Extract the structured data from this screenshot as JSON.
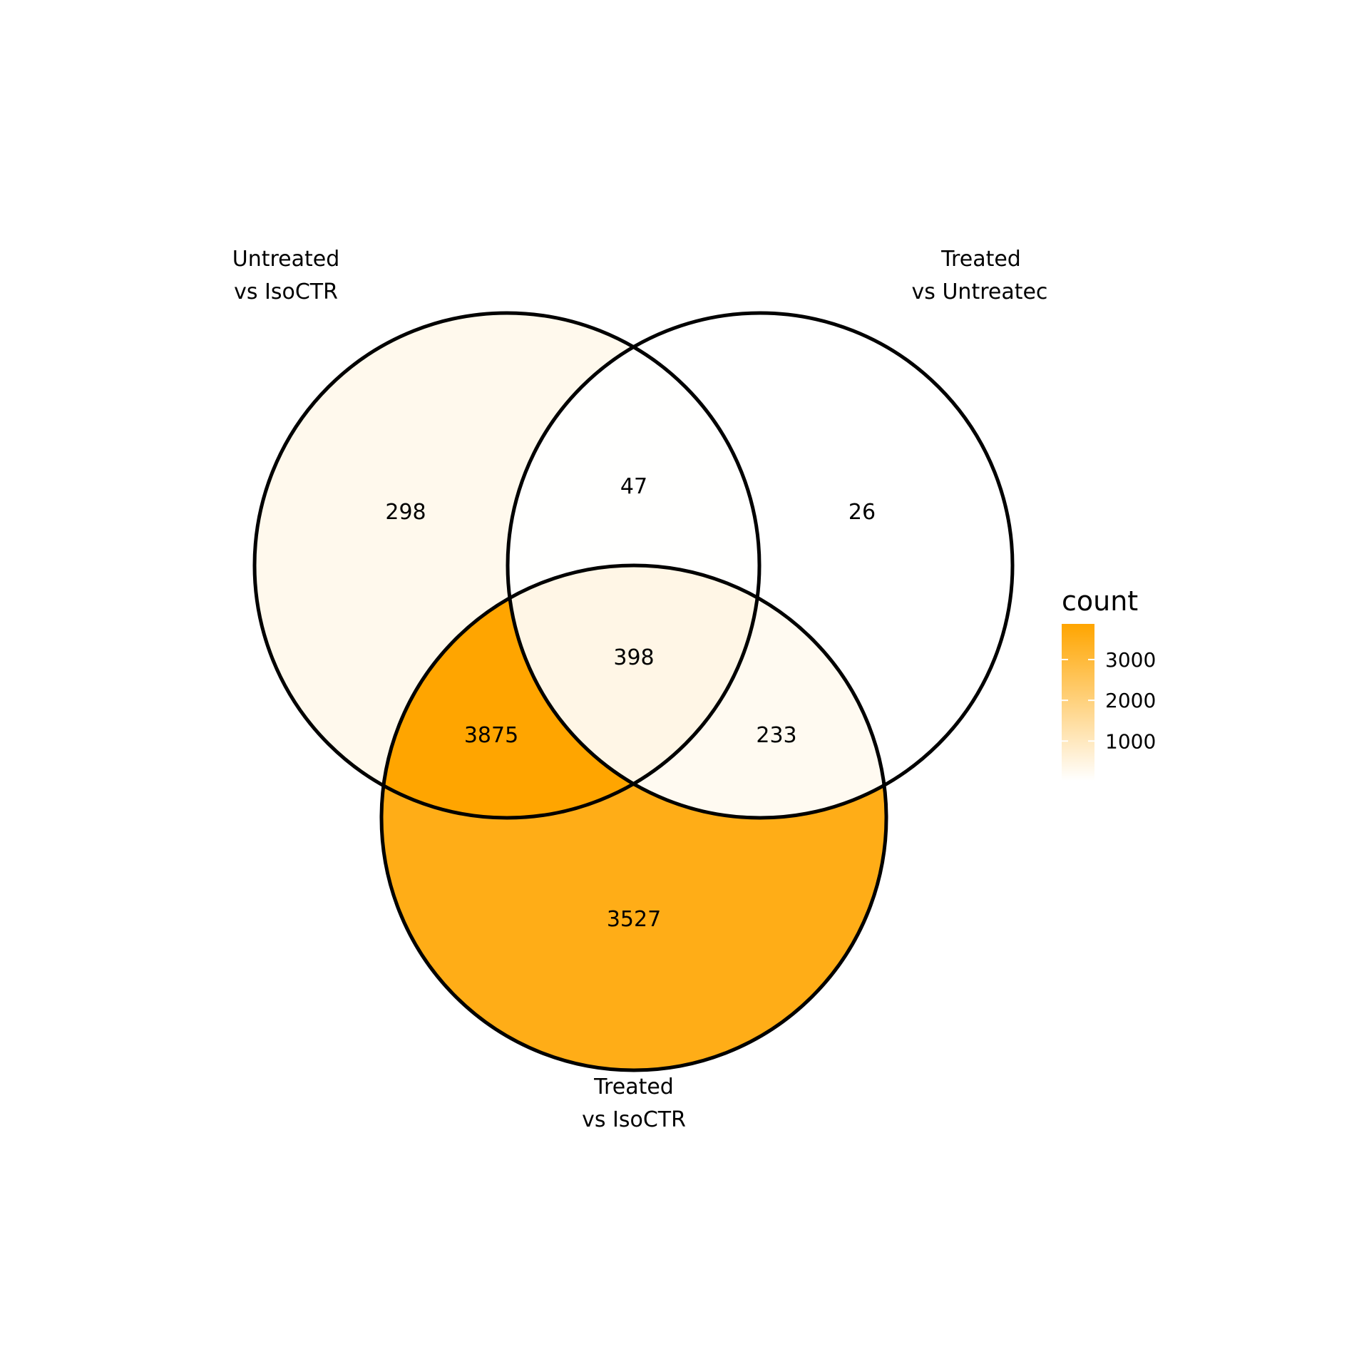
{
  "chart_data": {
    "type": "venn",
    "sets": [
      {
        "id": "A",
        "label_line1": "Untreated",
        "label_line2": "vs IsoCTR"
      },
      {
        "id": "B",
        "label_line1": "Treated",
        "label_line2": "vs Untreatec"
      },
      {
        "id": "C",
        "label_line1": "Treated",
        "label_line2": "vs IsoCTR"
      }
    ],
    "regions": [
      {
        "sets": [
          "A"
        ],
        "count": 298
      },
      {
        "sets": [
          "A",
          "B"
        ],
        "count": 47
      },
      {
        "sets": [
          "B"
        ],
        "count": 26
      },
      {
        "sets": [
          "A",
          "B",
          "C"
        ],
        "count": 398
      },
      {
        "sets": [
          "A",
          "C"
        ],
        "count": 3875
      },
      {
        "sets": [
          "B",
          "C"
        ],
        "count": 233
      },
      {
        "sets": [
          "C"
        ],
        "count": 3527
      }
    ],
    "legend": {
      "title": "count",
      "ticks": [
        1000,
        2000,
        3000
      ],
      "range": [
        26,
        3875
      ],
      "color_low": "#ffffff",
      "color_high": "#ffa500"
    }
  }
}
